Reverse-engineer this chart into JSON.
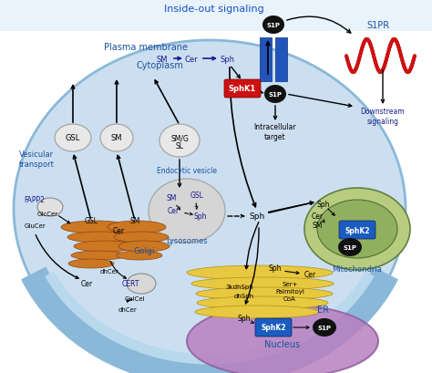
{
  "title": "Inside-out signaling",
  "bg_outer": "#ffffff",
  "bg_cell": "#c8dff0",
  "bg_outside": "#ddeefa",
  "plasma_color": "#a8cce0",
  "er_color": "#e8c840",
  "golgi_color": "#cc7722",
  "nucleus_color": "#c090cc",
  "mito_outer": "#b8cc80",
  "mito_inner": "#90b060",
  "blue_box": "#1a5cbf",
  "red_box": "#cc1111",
  "black_node": "#111111",
  "dark_blue_text": "#1a50a0",
  "navy_text": "#1a1a8e",
  "s1p": "S1P",
  "s1pr": "S1PR",
  "sphk1": "SphK1",
  "sphk2": "SphK2",
  "pm_label": "Plasma membrane",
  "cyto_label": "Cytoplasm",
  "golgi_label": "Golgi",
  "er_label": "ER",
  "nucleus_label": "Nucleus",
  "mito_label": "Mitochondria",
  "lyso_label": "Lysosomes",
  "endo_label": "Endocytic vesicle",
  "vesicular_label": "Vesicular\ntransport",
  "fapp2_label": "FAPP2",
  "cert_label": "CERT",
  "downstream_label": "Downstream\nsignaling",
  "intracell_label": "Intracellular\ntarget"
}
